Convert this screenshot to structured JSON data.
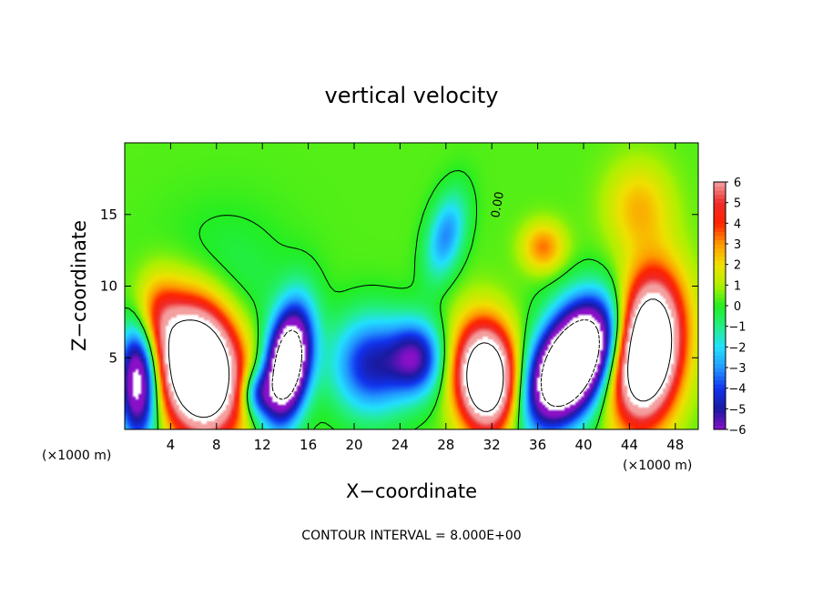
{
  "chart_data": {
    "type": "heatmap",
    "title": "vertical velocity",
    "xlabel": "X−coordinate",
    "ylabel": "Z−coordinate",
    "x_unit_label": "(×1000 m)",
    "z_unit_label": "(×1000 m)",
    "footnote": "CONTOUR INTERVAL = 8.000E+00",
    "contour_label": "0.00",
    "xlim": [
      0,
      50
    ],
    "ylim": [
      0,
      20
    ],
    "x_ticks": [
      4,
      8,
      12,
      16,
      20,
      24,
      28,
      32,
      36,
      40,
      44,
      48
    ],
    "y_ticks": [
      5,
      10,
      15
    ],
    "colorbar": {
      "ticks": [
        6,
        5,
        4,
        3,
        2,
        1,
        0,
        -1,
        -2,
        -3,
        -4,
        -5,
        -6
      ],
      "range": [
        -6,
        6
      ],
      "colors": {
        "6": "#f5a0a0",
        "5": "#ee2a2a",
        "4": "#ff2200",
        "3": "#ff9a00",
        "2": "#f0e000",
        "1": "#b0f000",
        "0": "#22ee22",
        "-1": "#22ee88",
        "-2": "#22e0ff",
        "-3": "#2299ff",
        "-4": "#1133ee",
        "-5": "#1a1aa0",
        "-6": "#8a10c8"
      }
    },
    "features": [
      {
        "x": 6.5,
        "z": 4.3,
        "sx": 2.4,
        "sz": 3.2,
        "w": 14,
        "theta": -0.25
      },
      {
        "x": 45.5,
        "z": 5.6,
        "sx": 2.0,
        "sz": 3.4,
        "w": 14,
        "theta": 0.15
      },
      {
        "x": 38.8,
        "z": 4.4,
        "sx": 2.0,
        "sz": 3.2,
        "w": -14,
        "theta": 0.7
      },
      {
        "x": 14.2,
        "z": 4.5,
        "sx": 1.3,
        "sz": 2.8,
        "w": -12,
        "theta": 0.2
      },
      {
        "x": 31.5,
        "z": 3.6,
        "sx": 1.8,
        "sz": 2.6,
        "w": 12,
        "theta": -0.1
      },
      {
        "x": 1.2,
        "z": 3.5,
        "sx": 1.2,
        "sz": 3.0,
        "w": -9,
        "theta": 0
      },
      {
        "x": 21.5,
        "z": 4.5,
        "sx": 2.4,
        "sz": 2.4,
        "w": -5,
        "theta": 0.3
      },
      {
        "x": 25.5,
        "z": 5.0,
        "sx": 1.6,
        "sz": 1.8,
        "w": -5,
        "theta": 0
      },
      {
        "x": 28.0,
        "z": 13.5,
        "sx": 1.1,
        "sz": 2.2,
        "w": -3.5,
        "theta": 0.3
      },
      {
        "x": 36.5,
        "z": 12.7,
        "sx": 1.3,
        "sz": 1.2,
        "w": 3,
        "theta": 0
      },
      {
        "x": 44.8,
        "z": 15.5,
        "sx": 2.0,
        "sz": 2.2,
        "w": 2.2,
        "theta": 0
      },
      {
        "x": 8.5,
        "z": 10.0,
        "sx": 4.0,
        "sz": 3.5,
        "w": -1,
        "theta": 0
      },
      {
        "x": 11.5,
        "z": 2.5,
        "sx": 1.0,
        "sz": 1.2,
        "w": -4,
        "theta": 0
      },
      {
        "x": 42.0,
        "z": 7.0,
        "sx": 3.0,
        "sz": 2.0,
        "w": -2,
        "theta": 0.4
      },
      {
        "x": 2.5,
        "z": 8.0,
        "sx": 1.6,
        "sz": 2.0,
        "w": 3,
        "theta": 0
      }
    ],
    "grid": false,
    "legend": "colorbar-right"
  }
}
